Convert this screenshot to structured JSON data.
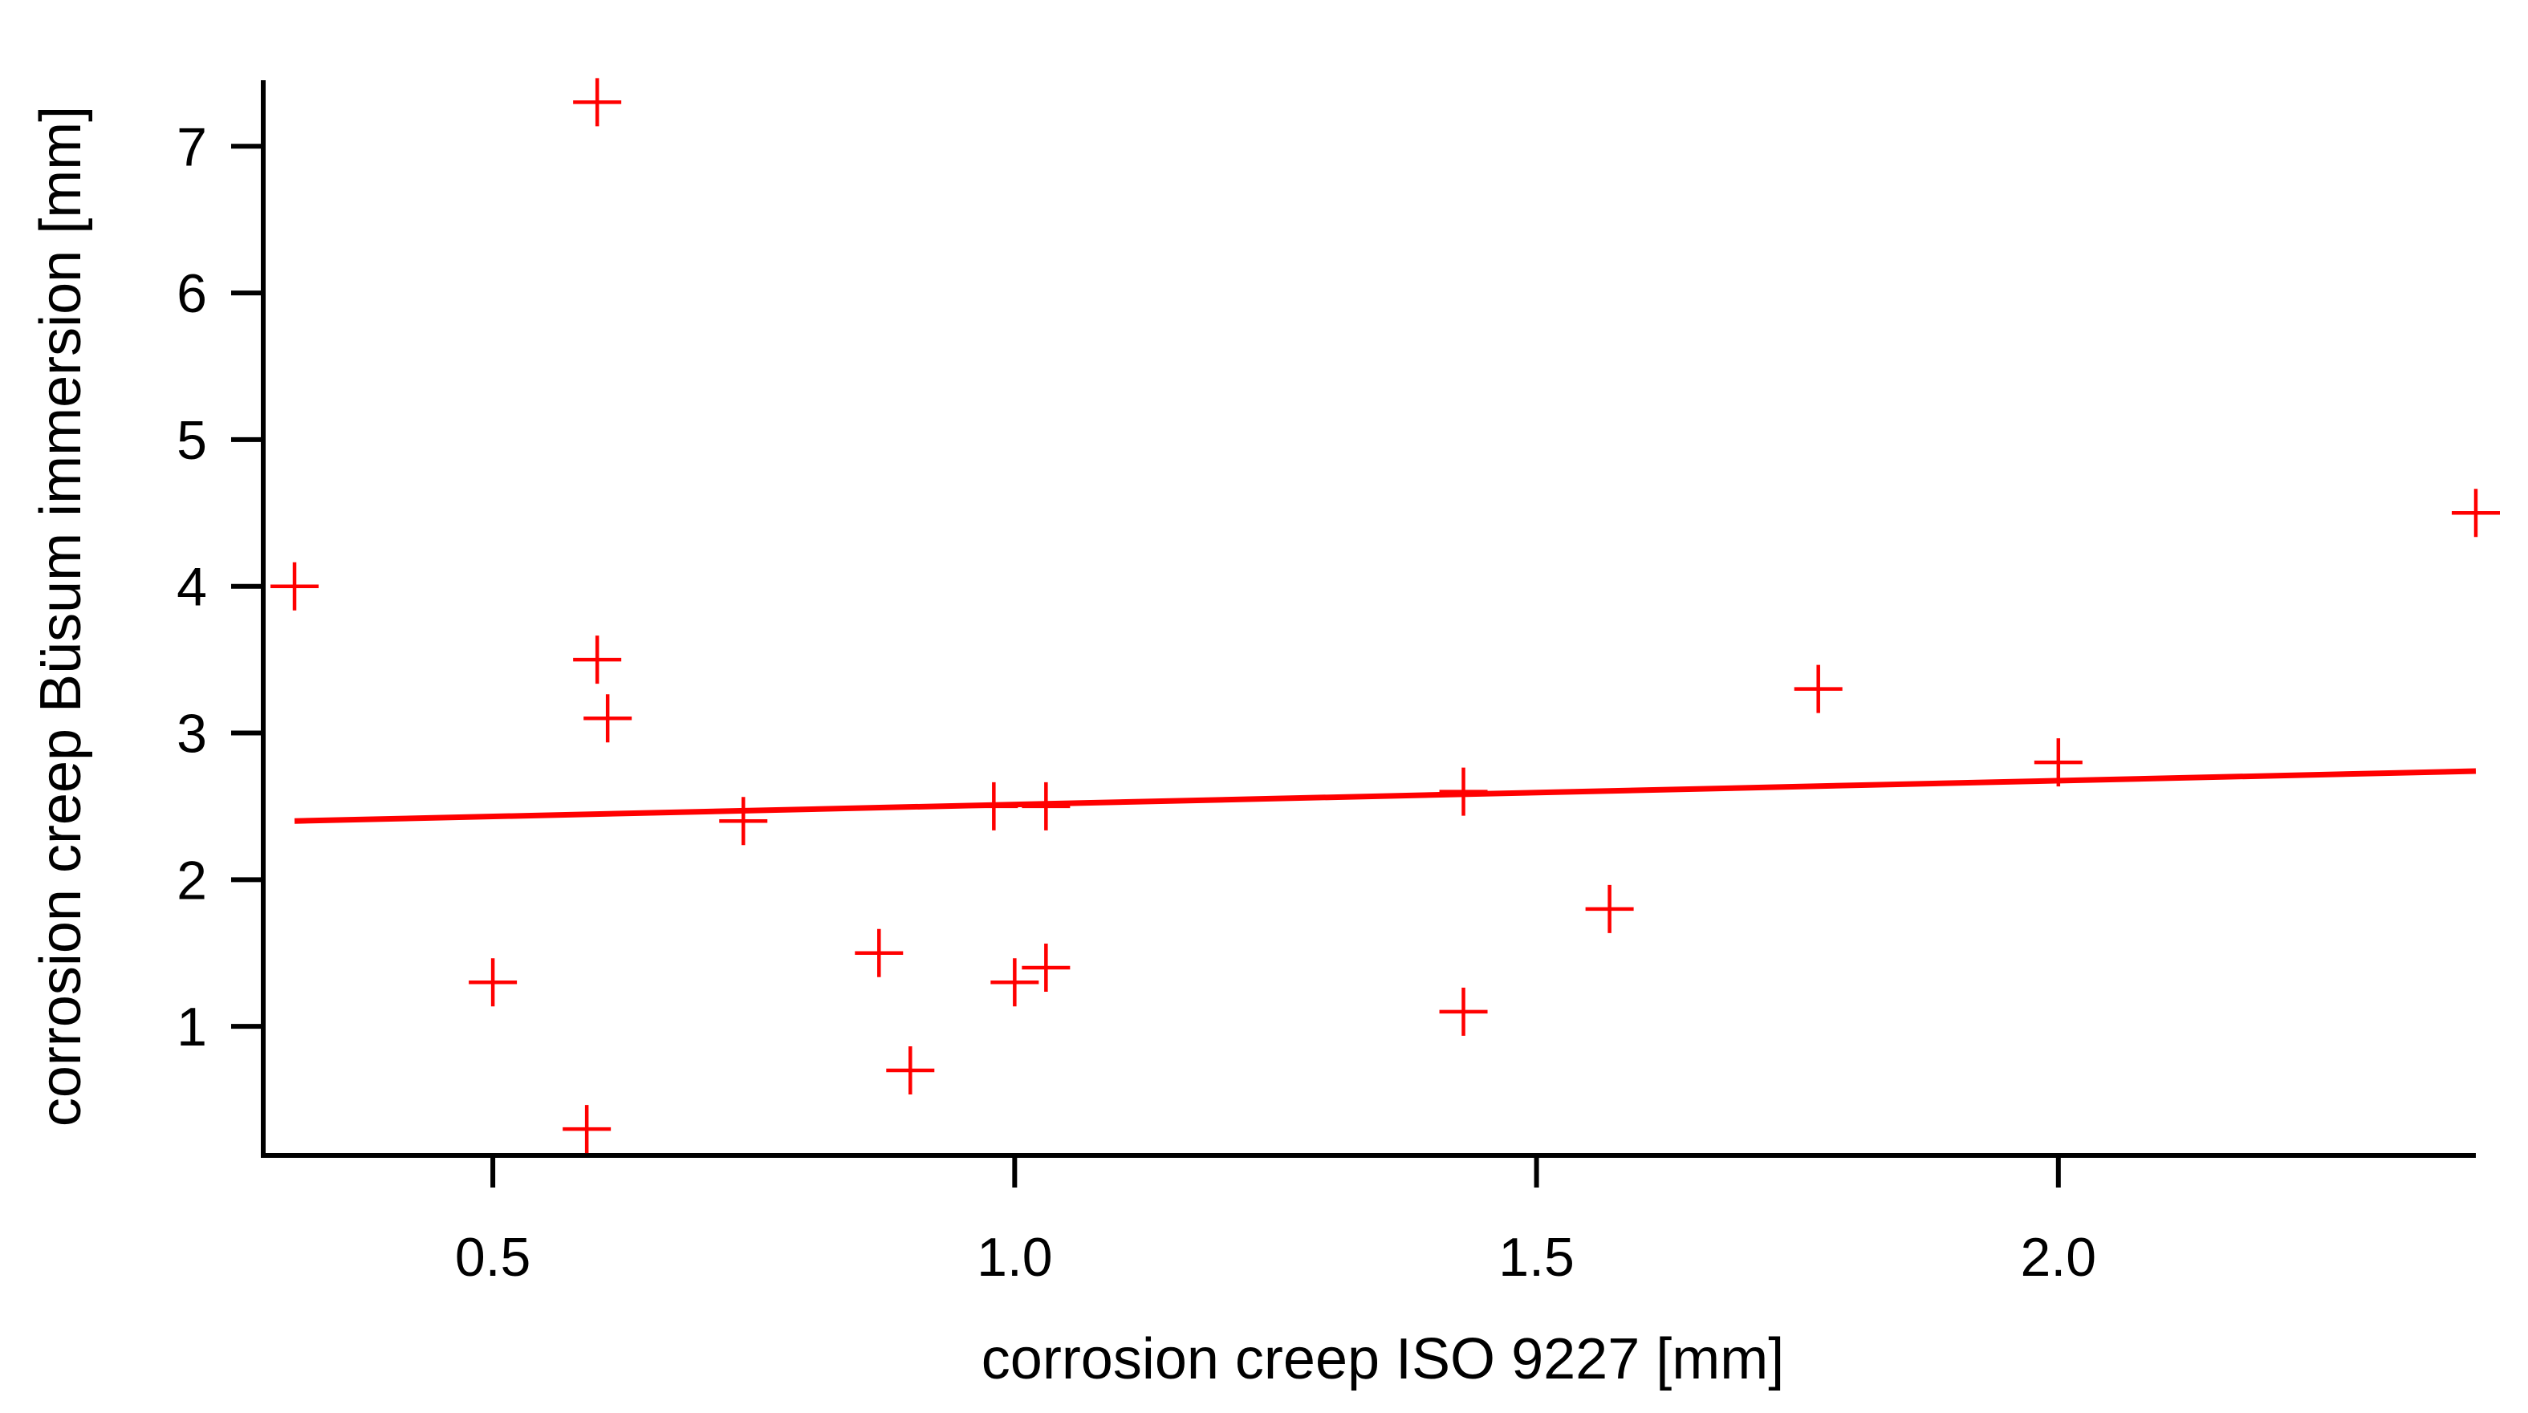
{
  "chart_data": {
    "type": "scatter",
    "title": "",
    "xlabel": "corrosion creep ISO 9227 [mm]",
    "ylabel": "corrosion creep Büsum immersion [mm]",
    "xlim": [
      0.28,
      2.4
    ],
    "ylim": [
      0.12,
      7.45
    ],
    "xticks": [
      {
        "value": 0.5,
        "label": "0.5"
      },
      {
        "value": 1.0,
        "label": "1.0"
      },
      {
        "value": 1.5,
        "label": "1.5"
      },
      {
        "value": 2.0,
        "label": "2.0"
      }
    ],
    "yticks": [
      {
        "value": 1,
        "label": "1"
      },
      {
        "value": 2,
        "label": "2"
      },
      {
        "value": 3,
        "label": "3"
      },
      {
        "value": 4,
        "label": "4"
      },
      {
        "value": 5,
        "label": "5"
      },
      {
        "value": 6,
        "label": "6"
      },
      {
        "value": 7,
        "label": "7"
      }
    ],
    "grid": false,
    "marker": "plus",
    "color": "#ff0000",
    "points": [
      {
        "x": 0.31,
        "y": 4.0
      },
      {
        "x": 0.5,
        "y": 1.3
      },
      {
        "x": 0.59,
        "y": 0.3
      },
      {
        "x": 0.6,
        "y": 7.3
      },
      {
        "x": 0.6,
        "y": 3.5
      },
      {
        "x": 0.61,
        "y": 3.1
      },
      {
        "x": 0.74,
        "y": 2.4
      },
      {
        "x": 0.87,
        "y": 1.5
      },
      {
        "x": 0.9,
        "y": 0.7
      },
      {
        "x": 0.98,
        "y": 2.5
      },
      {
        "x": 1.0,
        "y": 1.3
      },
      {
        "x": 1.03,
        "y": 2.5
      },
      {
        "x": 1.03,
        "y": 1.4
      },
      {
        "x": 1.43,
        "y": 2.6
      },
      {
        "x": 1.43,
        "y": 1.1
      },
      {
        "x": 1.57,
        "y": 1.8
      },
      {
        "x": 1.77,
        "y": 3.3
      },
      {
        "x": 2.0,
        "y": 2.8
      },
      {
        "x": 2.4,
        "y": 4.5
      }
    ],
    "trendline": {
      "type": "linear",
      "points": [
        {
          "x": 0.31,
          "y": 2.4
        },
        {
          "x": 2.4,
          "y": 2.74
        }
      ]
    }
  }
}
